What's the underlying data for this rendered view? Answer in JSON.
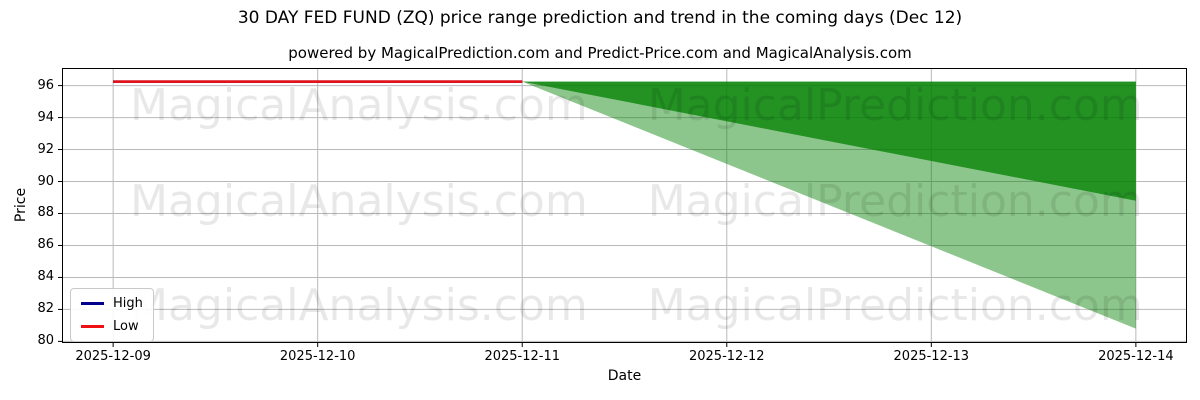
{
  "header": {
    "title": "30 DAY FED FUND (ZQ) price range prediction and trend in the coming days (Dec 12)",
    "subtitle": "powered by MagicalPrediction.com and Predict-Price.com and MagicalAnalysis.com"
  },
  "axes": {
    "x_label": "Date",
    "y_label": "Price"
  },
  "legend": {
    "items": [
      {
        "label": "High",
        "color": "#00008b"
      },
      {
        "label": "Low",
        "color": "#ee1111"
      }
    ]
  },
  "watermark": {
    "left_text": "MagicalAnalysis.com",
    "right_text": "MagicalPrediction.com"
  },
  "chart_data": {
    "type": "line",
    "title": "30 DAY FED FUND (ZQ) price range prediction and trend in the coming days (Dec 12)",
    "xlabel": "Date",
    "ylabel": "Price",
    "x_dates": [
      "2025-12-09",
      "2025-12-10",
      "2025-12-11",
      "2025-12-12",
      "2025-12-13",
      "2025-12-14"
    ],
    "xlim": [
      -0.25,
      5.25
    ],
    "ylim": [
      79.9,
      97.1
    ],
    "yticks": [
      80,
      82,
      84,
      86,
      88,
      90,
      92,
      94,
      96
    ],
    "grid": true,
    "grid_color": "#b9b9b9",
    "legend_position": "lower left",
    "series": [
      {
        "name": "High",
        "color": "#00008b",
        "x_idx": [
          0,
          1,
          2
        ],
        "values": [
          96.25,
          96.25,
          96.25
        ]
      },
      {
        "name": "Low",
        "color": "#ee1111",
        "x_idx": [
          0,
          1,
          2
        ],
        "values": [
          96.25,
          96.25,
          96.25
        ]
      }
    ],
    "bands": [
      {
        "name": "prediction-range-outer",
        "color": "rgba(0,128,0,0.45)",
        "x_idx": [
          2,
          5
        ],
        "top": [
          96.25,
          96.25
        ],
        "bottom": [
          96.25,
          80.8
        ]
      },
      {
        "name": "prediction-range-inner",
        "color": "rgba(0,128,0,0.75)",
        "x_idx": [
          2,
          5
        ],
        "top": [
          96.25,
          96.25
        ],
        "bottom": [
          96.25,
          88.8
        ]
      }
    ]
  }
}
